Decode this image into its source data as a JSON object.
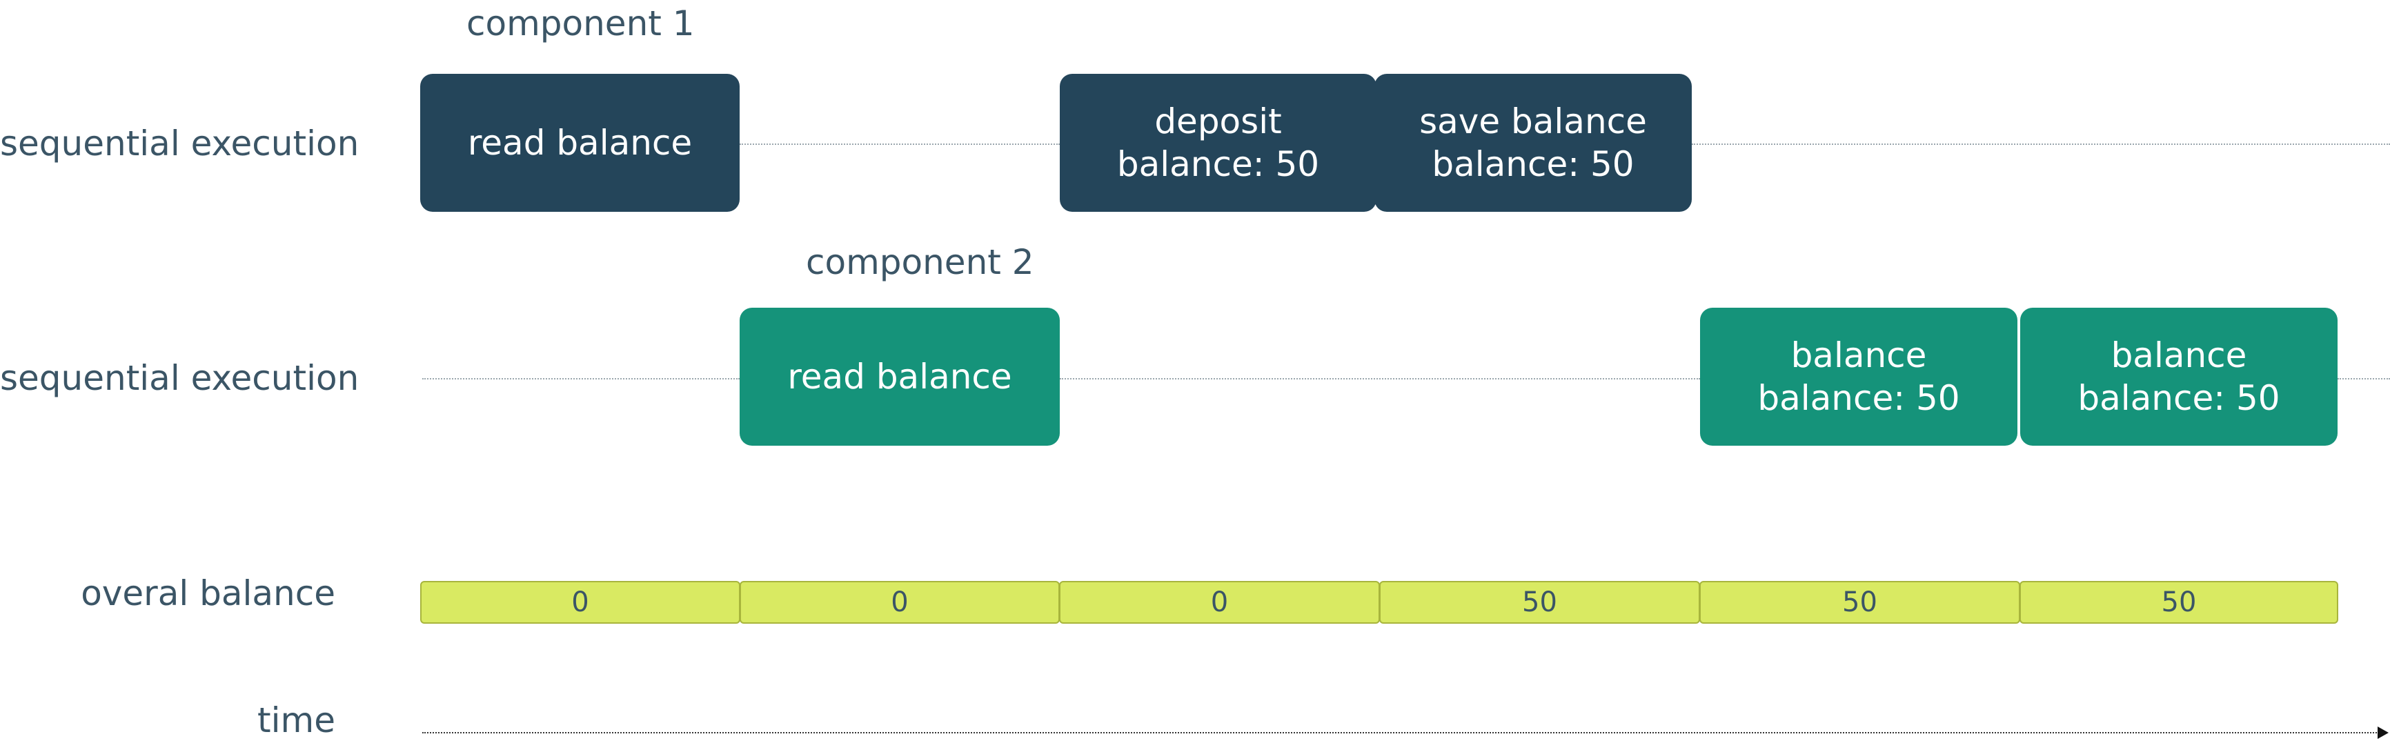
{
  "row_labels": {
    "row1": "sequential execution",
    "row2": "sequential execution",
    "balance": "overal balance",
    "time": "time"
  },
  "component1": {
    "title": "component 1",
    "steps": [
      {
        "line1": "read balance",
        "line2": ""
      },
      {
        "line1": "deposit",
        "line2": "balance: 50"
      },
      {
        "line1": "save balance",
        "line2": "balance: 50"
      }
    ]
  },
  "component2": {
    "title": "component 2",
    "steps": [
      {
        "line1": "read balance",
        "line2": ""
      },
      {
        "line1": "balance",
        "line2": "balance: 50"
      },
      {
        "line1": "balance",
        "line2": "balance: 50"
      }
    ]
  },
  "overall_balance": [
    "0",
    "0",
    "0",
    "50",
    "50",
    "50"
  ],
  "colors": {
    "component1": "#24455a",
    "component2": "#15937a",
    "balance_cell": "#d9ea62",
    "label_text": "#3b5566"
  }
}
